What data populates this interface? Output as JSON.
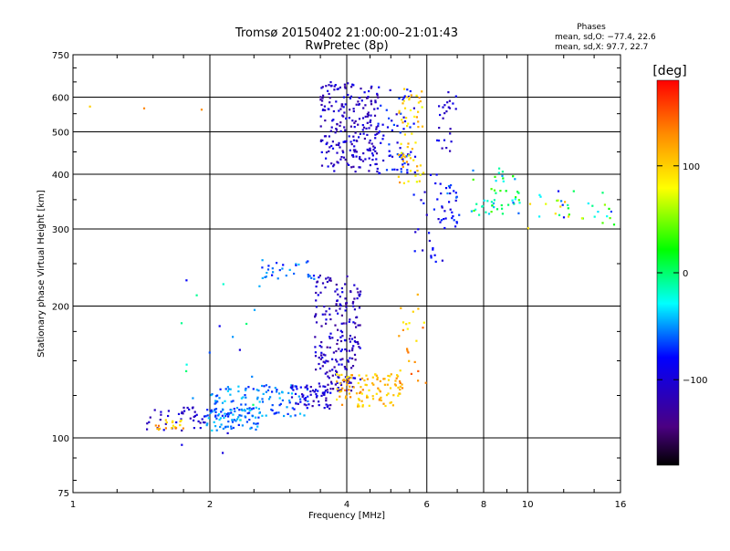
{
  "chart_data": {
    "type": "scatter",
    "title": "Tromsø 20150402 21:00:00–21:01:43",
    "subtitle": "RwPretec (8p)",
    "xlabel": "Frequency [MHz]",
    "ylabel": "Stationary phase Virtual Height [km]",
    "x_scale": "log",
    "y_scale": "log",
    "xlim": [
      1,
      16
    ],
    "ylim": [
      75,
      750
    ],
    "x_ticks": [
      1,
      2,
      4,
      6,
      8,
      10,
      16
    ],
    "x_tick_labels": [
      "1",
      "2",
      "4",
      "6",
      "8",
      "10",
      "16"
    ],
    "y_ticks": [
      75,
      100,
      200,
      300,
      400,
      500,
      600,
      750
    ],
    "y_tick_labels": [
      "75",
      "100",
      "200",
      "300",
      "400",
      "500",
      "600",
      "750"
    ],
    "grid": true,
    "stats": {
      "heading": "Phases",
      "line_o": "mean, sd,O: −77.4, 22.6",
      "line_x": "mean, sd,X:  97.7, 22.7"
    },
    "colorbar": {
      "label": "[deg]",
      "range": [
        -180,
        180
      ],
      "ticks": [
        100,
        0,
        -100
      ],
      "tick_labels": [
        "100",
        "0",
        "−100"
      ],
      "colors": [
        "#000000",
        "#4b0082",
        "#0000ff",
        "#00ffff",
        "#00ff00",
        "#ffff00",
        "#ff8c00",
        "#ff0000"
      ]
    },
    "clusters": [
      {
        "x": [
          1.45,
          1.95
        ],
        "y": [
          104,
          118
        ],
        "phase": [
          -125,
          -90
        ],
        "n": 40
      },
      {
        "x": [
          1.5,
          1.75
        ],
        "y": [
          104,
          110
        ],
        "phase": [
          80,
          150
        ],
        "n": 20
      },
      {
        "x": [
          1.95,
          2.6
        ],
        "y": [
          104,
          117
        ],
        "phase": [
          -75,
          -35
        ],
        "n": 80
      },
      {
        "x": [
          2.0,
          3.3
        ],
        "y": [
          112,
          132
        ],
        "phase": [
          -75,
          -35
        ],
        "n": 110
      },
      {
        "x": [
          3.0,
          3.7
        ],
        "y": [
          116,
          132
        ],
        "phase": [
          -125,
          -75
        ],
        "n": 60
      },
      {
        "x": [
          3.4,
          4.3
        ],
        "y": [
          125,
          235
        ],
        "phase": [
          -135,
          -85
        ],
        "n": 210
      },
      {
        "x": [
          3.8,
          5.3
        ],
        "y": [
          118,
          140
        ],
        "phase": [
          85,
          135
        ],
        "n": 110
      },
      {
        "x": [
          3.5,
          4.7
        ],
        "y": [
          405,
          650
        ],
        "phase": [
          -130,
          -85
        ],
        "n": 230
      },
      {
        "x": [
          4.6,
          5.7
        ],
        "y": [
          400,
          640
        ],
        "phase": [
          -110,
          -60
        ],
        "n": 70
      },
      {
        "x": [
          5.2,
          5.9
        ],
        "y": [
          380,
          640
        ],
        "phase": [
          70,
          130
        ],
        "n": 60
      },
      {
        "x": [
          5.2,
          6.0
        ],
        "y": [
          130,
          215
        ],
        "phase": [
          80,
          150
        ],
        "n": 25
      },
      {
        "x": [
          5.6,
          6.6
        ],
        "y": [
          250,
          400
        ],
        "phase": [
          -110,
          -70
        ],
        "n": 30
      },
      {
        "x": [
          6.3,
          7.0
        ],
        "y": [
          450,
          620
        ],
        "phase": [
          -120,
          -80
        ],
        "n": 25
      },
      {
        "x": [
          6.4,
          7.1
        ],
        "y": [
          300,
          380
        ],
        "phase": [
          -110,
          -50
        ],
        "n": 25
      },
      {
        "x": [
          7.5,
          9.6
        ],
        "y": [
          320,
          420
        ],
        "phase": [
          -60,
          40
        ],
        "n": 50
      },
      {
        "x": [
          9.8,
          15.5
        ],
        "y": [
          300,
          370
        ],
        "phase": [
          -90,
          120
        ],
        "n": 35
      },
      {
        "x": [
          2.6,
          3.4
        ],
        "y": [
          230,
          255
        ],
        "phase": [
          -80,
          -40
        ],
        "n": 30
      },
      {
        "x": [
          1.7,
          2.7
        ],
        "y": [
          90,
          240
        ],
        "phase": [
          -100,
          0
        ],
        "n": 22
      },
      {
        "x": [
          1.05,
          1.95
        ],
        "y": [
          555,
          590
        ],
        "phase": [
          100,
          160
        ],
        "n": 3
      }
    ]
  }
}
